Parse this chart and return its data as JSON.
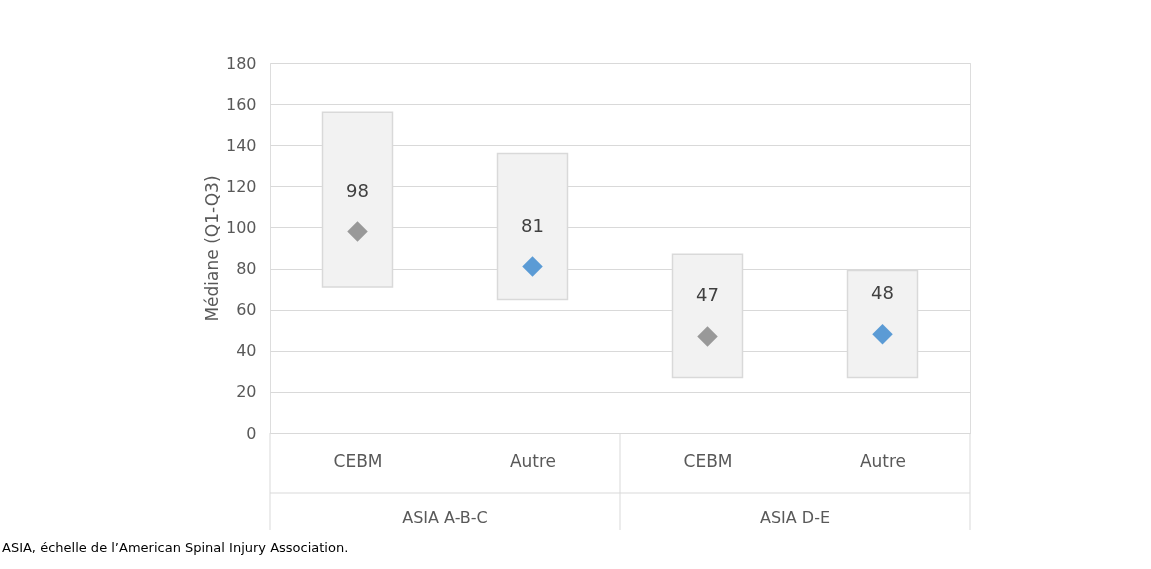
{
  "chart_data": {
    "type": "bar",
    "ylabel": "Médiane (Q1-Q3)",
    "categories": [
      "CEBM",
      "Autre",
      "CEBM",
      "Autre"
    ],
    "series": [
      {
        "color": "#f2f2f2",
        "base": [
          71,
          65,
          27,
          27
        ],
        "values": [
          85,
          71,
          60,
          52
        ]
      },
      {
        "type": "scatter",
        "marker": "diamond",
        "colors": [
          "#999999",
          "#5b9bd5",
          "#999999",
          "#5b9bd5"
        ],
        "values": [
          98,
          81,
          47,
          48
        ],
        "value_labels": [
          "98",
          "81",
          "47",
          "48"
        ]
      }
    ],
    "ylim": [
      0,
      180
    ],
    "yticks": [
      0,
      20,
      40,
      60,
      80,
      100,
      120,
      140,
      160,
      180
    ],
    "grid": "y",
    "annotations": [
      "ASIA A-B-C",
      "ASIA D-E",
      "ASIA, échelle de l’American Spinal Injury Association."
    ]
  }
}
